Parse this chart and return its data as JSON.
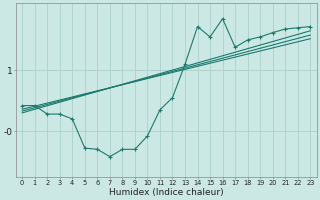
{
  "title": "",
  "xlabel": "Humidex (Indice chaleur)",
  "bg_color": "#cce8e4",
  "line_color": "#1a7a6e",
  "grid_color": "#aacfcb",
  "xlim": [
    -0.5,
    23.5
  ],
  "ylim": [
    -0.75,
    2.1
  ],
  "yticks": [
    0.0,
    1.0
  ],
  "ytick_labels": [
    "-0",
    "1"
  ],
  "xticks": [
    0,
    1,
    2,
    3,
    4,
    5,
    6,
    7,
    8,
    9,
    10,
    11,
    12,
    13,
    14,
    15,
    16,
    17,
    18,
    19,
    20,
    21,
    22,
    23
  ],
  "line1_x": [
    0,
    1,
    2,
    3,
    4,
    5,
    6,
    7,
    8,
    9,
    10,
    11,
    12,
    13,
    14,
    15,
    16,
    17,
    18,
    19,
    20,
    21,
    22,
    23
  ],
  "line1_y": [
    0.42,
    0.42,
    0.28,
    0.28,
    0.2,
    -0.28,
    -0.3,
    -0.42,
    -0.3,
    -0.3,
    -0.08,
    0.35,
    0.55,
    1.1,
    1.72,
    1.55,
    1.85,
    1.38,
    1.5,
    1.55,
    1.62,
    1.68,
    1.7,
    1.72
  ],
  "line2_x": [
    0,
    23
  ],
  "line2_y": [
    0.3,
    1.65
  ],
  "line3_x": [
    0,
    23
  ],
  "line3_y": [
    0.33,
    1.58
  ],
  "line4_x": [
    0,
    23
  ],
  "line4_y": [
    0.36,
    1.52
  ]
}
